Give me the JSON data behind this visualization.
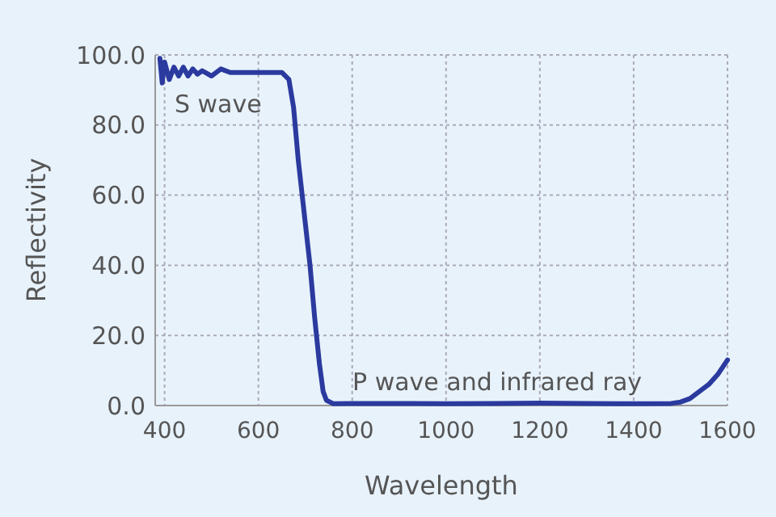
{
  "chart_data": {
    "type": "line",
    "xlabel": "Wavelength",
    "ylabel": "Reflectivity",
    "xlim": [
      380,
      1600
    ],
    "ylim": [
      0,
      100
    ],
    "xticks": [
      400,
      600,
      800,
      1000,
      1200,
      1400,
      1600
    ],
    "yticks": [
      {
        "value": 0,
        "label": "0.0"
      },
      {
        "value": 20,
        "label": "20.0"
      },
      {
        "value": 40,
        "label": "40.0"
      },
      {
        "value": 60,
        "label": "60.0"
      },
      {
        "value": 80,
        "label": "80.0"
      },
      {
        "value": 100,
        "label": "100.0"
      }
    ],
    "grid": true,
    "marker": "none",
    "line_style": "solid",
    "x": [
      390,
      395,
      400,
      410,
      420,
      430,
      440,
      450,
      460,
      470,
      480,
      500,
      520,
      540,
      560,
      600,
      640,
      650,
      665,
      675,
      685,
      700,
      710,
      720,
      730,
      738,
      745,
      760,
      800,
      900,
      1000,
      1100,
      1200,
      1300,
      1400,
      1480,
      1500,
      1520,
      1540,
      1560,
      1580,
      1600
    ],
    "series": [
      {
        "color": "#2b3a9e",
        "values": [
          99,
          92,
          98,
          93,
          96.5,
          94,
          96.5,
          94,
          96,
          94.5,
          95.5,
          94,
          96,
          95,
          95,
          95,
          95,
          95,
          93,
          85,
          70,
          52,
          40,
          25,
          12,
          4,
          1.5,
          0.5,
          0.6,
          0.6,
          0.5,
          0.6,
          0.7,
          0.6,
          0.5,
          0.6,
          1,
          2,
          4,
          6,
          9,
          13
        ]
      }
    ],
    "annotations": [
      "S wave",
      "P wave and infrared ray"
    ]
  }
}
